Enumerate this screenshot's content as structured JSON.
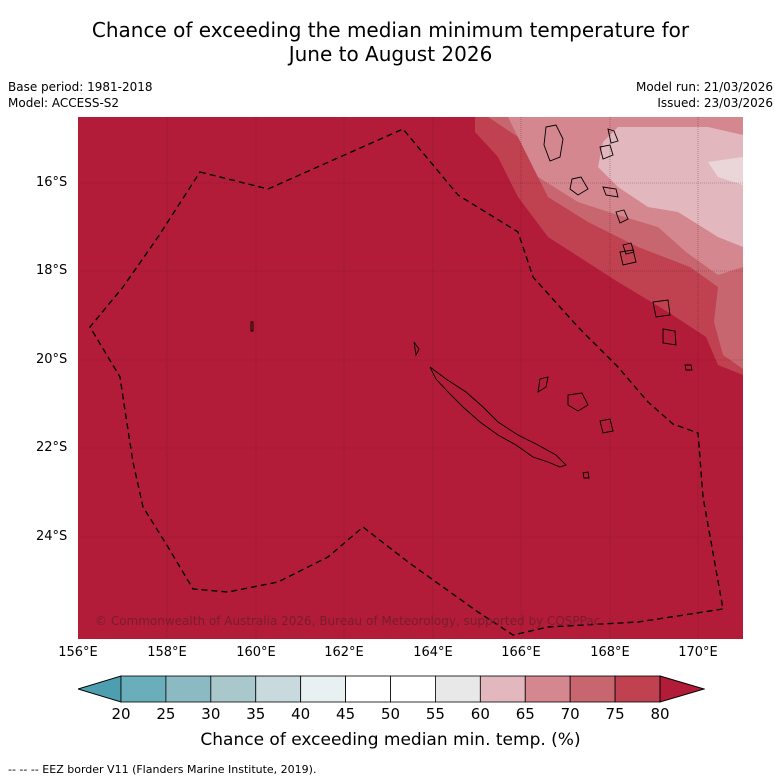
{
  "title_line1": "Chance of exceeding the median minimum temperature for",
  "title_line2": "June to August 2026",
  "base_period": "Base period: 1981-2018",
  "model": "Model: ACCESS-S2",
  "model_run": "Model run: 21/03/2026",
  "issued": "Issued: 23/03/2026",
  "copyright": "© Commonwealth of Australia 2026, Bureau of Meteorology, supported by COSPPac",
  "lat_labels": [
    "16°S",
    "18°S",
    "20°S",
    "22°S",
    "24°S"
  ],
  "lon_labels": [
    "156°E",
    "158°E",
    "160°E",
    "162°E",
    "164°E",
    "166°E",
    "168°E",
    "170°E"
  ],
  "colorbar": {
    "ticks": [
      "20",
      "25",
      "30",
      "35",
      "40",
      "45",
      "50",
      "55",
      "60",
      "65",
      "70",
      "75",
      "80"
    ],
    "colors": [
      "#4d9fb0",
      "#6aaebb",
      "#8cbac3",
      "#a9c8cc",
      "#c8dadd",
      "#e9f0f1",
      "#ffffff",
      "#ffffff",
      "#e8e8e8",
      "#e2b8be",
      "#d4878f",
      "#c86670",
      "#c0414f",
      "#b21c38"
    ],
    "label": "Chance of exceeding median min. temp. (%)"
  },
  "map_colors": {
    "base": "#b21c38",
    "band_75": "#c0414f",
    "band_70": "#c86670",
    "band_65": "#d4878f",
    "band_60": "#e2b8be"
  },
  "legend_note": "--  --  -- EEZ border V11 (Flanders Marine Institute, 2019)."
}
